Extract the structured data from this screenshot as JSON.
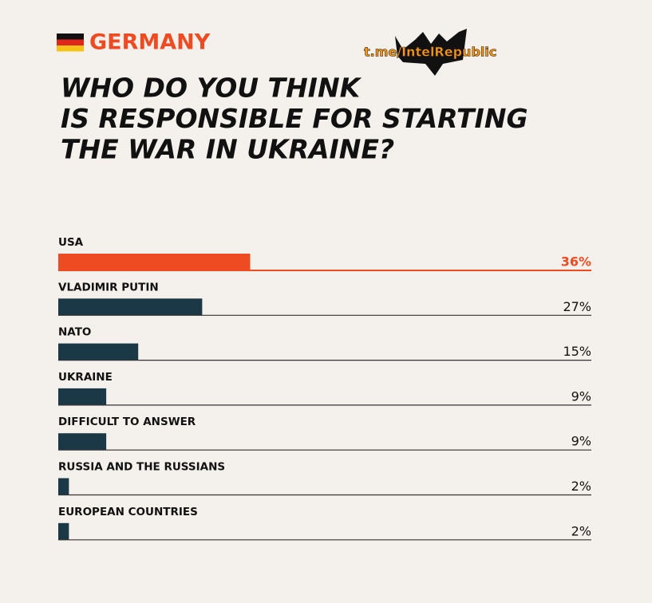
{
  "header": {
    "country": "GERMANY",
    "watermark": "t.me/IntelRepublic"
  },
  "chart_data": {
    "type": "hbar",
    "title": [
      "WHO DO YOU THINK",
      "IS RESPONSIBLE FOR STARTING",
      "THE WAR IN UKRAINE?"
    ],
    "categories": [
      "USA",
      "VLADIMIR PUTIN",
      "NATO",
      "UKRAINE",
      "DIFFICULT TO ANSWER",
      "RUSSIA AND THE RUSSIANS",
      "EUROPEAN COUNTRIES"
    ],
    "values": [
      36,
      27,
      15,
      9,
      9,
      2,
      2
    ],
    "value_labels": [
      "36%",
      "27%",
      "15%",
      "9%",
      "9%",
      "2%",
      "2%"
    ],
    "colors": [
      "#ef4b22",
      "#1b3847",
      "#1b3847",
      "#1b3847",
      "#1b3847",
      "#1b3847",
      "#1b3847"
    ],
    "xlim": [
      0,
      100
    ]
  }
}
